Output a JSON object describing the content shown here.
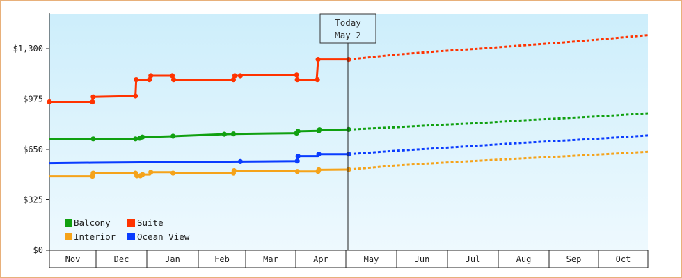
{
  "chart_data": {
    "type": "line",
    "title": "",
    "xlabel": "",
    "ylabel": "",
    "ylim": [
      0,
      1300
    ],
    "y_ticks": [
      {
        "value": 0,
        "label": "$0"
      },
      {
        "value": 325,
        "label": "$325"
      },
      {
        "value": 650,
        "label": "$650"
      },
      {
        "value": 975,
        "label": "$975"
      },
      {
        "value": 1300,
        "label": "$1,300"
      }
    ],
    "x_months": [
      "Nov",
      "Dec",
      "Jan",
      "Feb",
      "Mar",
      "Apr",
      "May",
      "Jun",
      "Jul",
      "Aug",
      "Sep",
      "Oct"
    ],
    "today": {
      "line1": "Today",
      "line2": "May 2",
      "x": 184
    },
    "grid": false,
    "legend_position": "bottom-left",
    "series": [
      {
        "name": "Suite",
        "color": "#ff3300",
        "history": [
          [
            0,
            957
          ],
          [
            62,
            957
          ],
          [
            63,
            990
          ],
          [
            124,
            995
          ],
          [
            125,
            1100
          ],
          [
            144,
            1100
          ],
          [
            146,
            1125
          ],
          [
            177,
            1125
          ],
          [
            179,
            1100
          ],
          [
            265,
            1100
          ],
          [
            267,
            1125
          ],
          [
            275,
            1125
          ],
          [
            276,
            1130
          ],
          [
            356,
            1130
          ],
          [
            357,
            1100
          ],
          [
            385,
            1100
          ],
          [
            387,
            1230
          ],
          [
            431,
            1230
          ]
        ],
        "forecast": [
          [
            431,
            1230
          ],
          [
            500,
            1262
          ],
          [
            560,
            1283
          ],
          [
            620,
            1300
          ],
          [
            680,
            1320
          ],
          [
            740,
            1340
          ],
          [
            800,
            1362
          ],
          [
            862,
            1387
          ]
        ]
      },
      {
        "name": "Balcony",
        "color": "#10a010",
        "history": [
          [
            0,
            715
          ],
          [
            63,
            718
          ],
          [
            124,
            718
          ],
          [
            130,
            722
          ],
          [
            134,
            730
          ],
          [
            178,
            735
          ],
          [
            252,
            748
          ],
          [
            265,
            750
          ],
          [
            356,
            755
          ],
          [
            358,
            767
          ],
          [
            388,
            770
          ],
          [
            389,
            777
          ],
          [
            431,
            778
          ]
        ],
        "forecast": [
          [
            431,
            778
          ],
          [
            500,
            793
          ],
          [
            560,
            808
          ],
          [
            620,
            820
          ],
          [
            680,
            837
          ],
          [
            740,
            851
          ],
          [
            800,
            865
          ],
          [
            862,
            883
          ]
        ]
      },
      {
        "name": "Ocean View",
        "color": "#0a3cff",
        "history": [
          [
            0,
            562
          ],
          [
            63,
            565
          ],
          [
            131,
            567
          ],
          [
            275,
            572
          ],
          [
            357,
            575
          ],
          [
            358,
            607
          ],
          [
            387,
            607
          ],
          [
            388,
            620
          ],
          [
            431,
            620
          ]
        ],
        "forecast": [
          [
            431,
            620
          ],
          [
            500,
            642
          ],
          [
            560,
            658
          ],
          [
            620,
            675
          ],
          [
            680,
            692
          ],
          [
            740,
            707
          ],
          [
            800,
            722
          ],
          [
            862,
            740
          ]
        ]
      },
      {
        "name": "Interior",
        "color": "#f5a31a",
        "history": [
          [
            0,
            477
          ],
          [
            62,
            477
          ],
          [
            63,
            497
          ],
          [
            125,
            497
          ],
          [
            126,
            480
          ],
          [
            131,
            480
          ],
          [
            134,
            488
          ],
          [
            145,
            488
          ],
          [
            146,
            503
          ],
          [
            177,
            503
          ],
          [
            178,
            497
          ],
          [
            265,
            497
          ],
          [
            266,
            513
          ],
          [
            356,
            513
          ],
          [
            357,
            508
          ],
          [
            387,
            508
          ],
          [
            388,
            518
          ],
          [
            431,
            520
          ]
        ],
        "forecast": [
          [
            431,
            520
          ],
          [
            500,
            547
          ],
          [
            560,
            563
          ],
          [
            620,
            578
          ],
          [
            680,
            592
          ],
          [
            740,
            605
          ],
          [
            800,
            620
          ],
          [
            862,
            635
          ]
        ]
      }
    ],
    "markers": {
      "Suite": [
        [
          0,
          957
        ],
        [
          62,
          957
        ],
        [
          63,
          990
        ],
        [
          124,
          995
        ],
        [
          125,
          1100
        ],
        [
          144,
          1100
        ],
        [
          146,
          1125
        ],
        [
          177,
          1125
        ],
        [
          179,
          1100
        ],
        [
          265,
          1100
        ],
        [
          267,
          1125
        ],
        [
          275,
          1125
        ],
        [
          356,
          1130
        ],
        [
          357,
          1100
        ],
        [
          386,
          1100
        ],
        [
          387,
          1230
        ],
        [
          431,
          1230
        ]
      ],
      "Balcony": [
        [
          63,
          718
        ],
        [
          124,
          718
        ],
        [
          130,
          722
        ],
        [
          134,
          730
        ],
        [
          178,
          735
        ],
        [
          252,
          748
        ],
        [
          265,
          750
        ],
        [
          356,
          755
        ],
        [
          358,
          767
        ],
        [
          388,
          770
        ],
        [
          389,
          777
        ],
        [
          431,
          778
        ]
      ],
      "Ocean View": [
        [
          275,
          572
        ],
        [
          357,
          575
        ],
        [
          358,
          607
        ],
        [
          388,
          620
        ],
        [
          431,
          620
        ]
      ],
      "Interior": [
        [
          62,
          477
        ],
        [
          63,
          497
        ],
        [
          124,
          497
        ],
        [
          126,
          480
        ],
        [
          131,
          480
        ],
        [
          134,
          488
        ],
        [
          146,
          503
        ],
        [
          178,
          497
        ],
        [
          265,
          497
        ],
        [
          266,
          513
        ],
        [
          357,
          508
        ],
        [
          387,
          508
        ],
        [
          388,
          518
        ],
        [
          431,
          520
        ]
      ]
    }
  },
  "legend": {
    "items": [
      {
        "label": "Balcony",
        "color": "#10a010"
      },
      {
        "label": "Suite",
        "color": "#ff3300"
      },
      {
        "label": "Interior",
        "color": "#f5a31a"
      },
      {
        "label": "Ocean View",
        "color": "#0a3cff"
      }
    ]
  },
  "colors": {
    "frame_border": "#e8b07a",
    "plot_bg_top": "#cdeefb",
    "plot_bg_bottom": "#eef9fe"
  }
}
